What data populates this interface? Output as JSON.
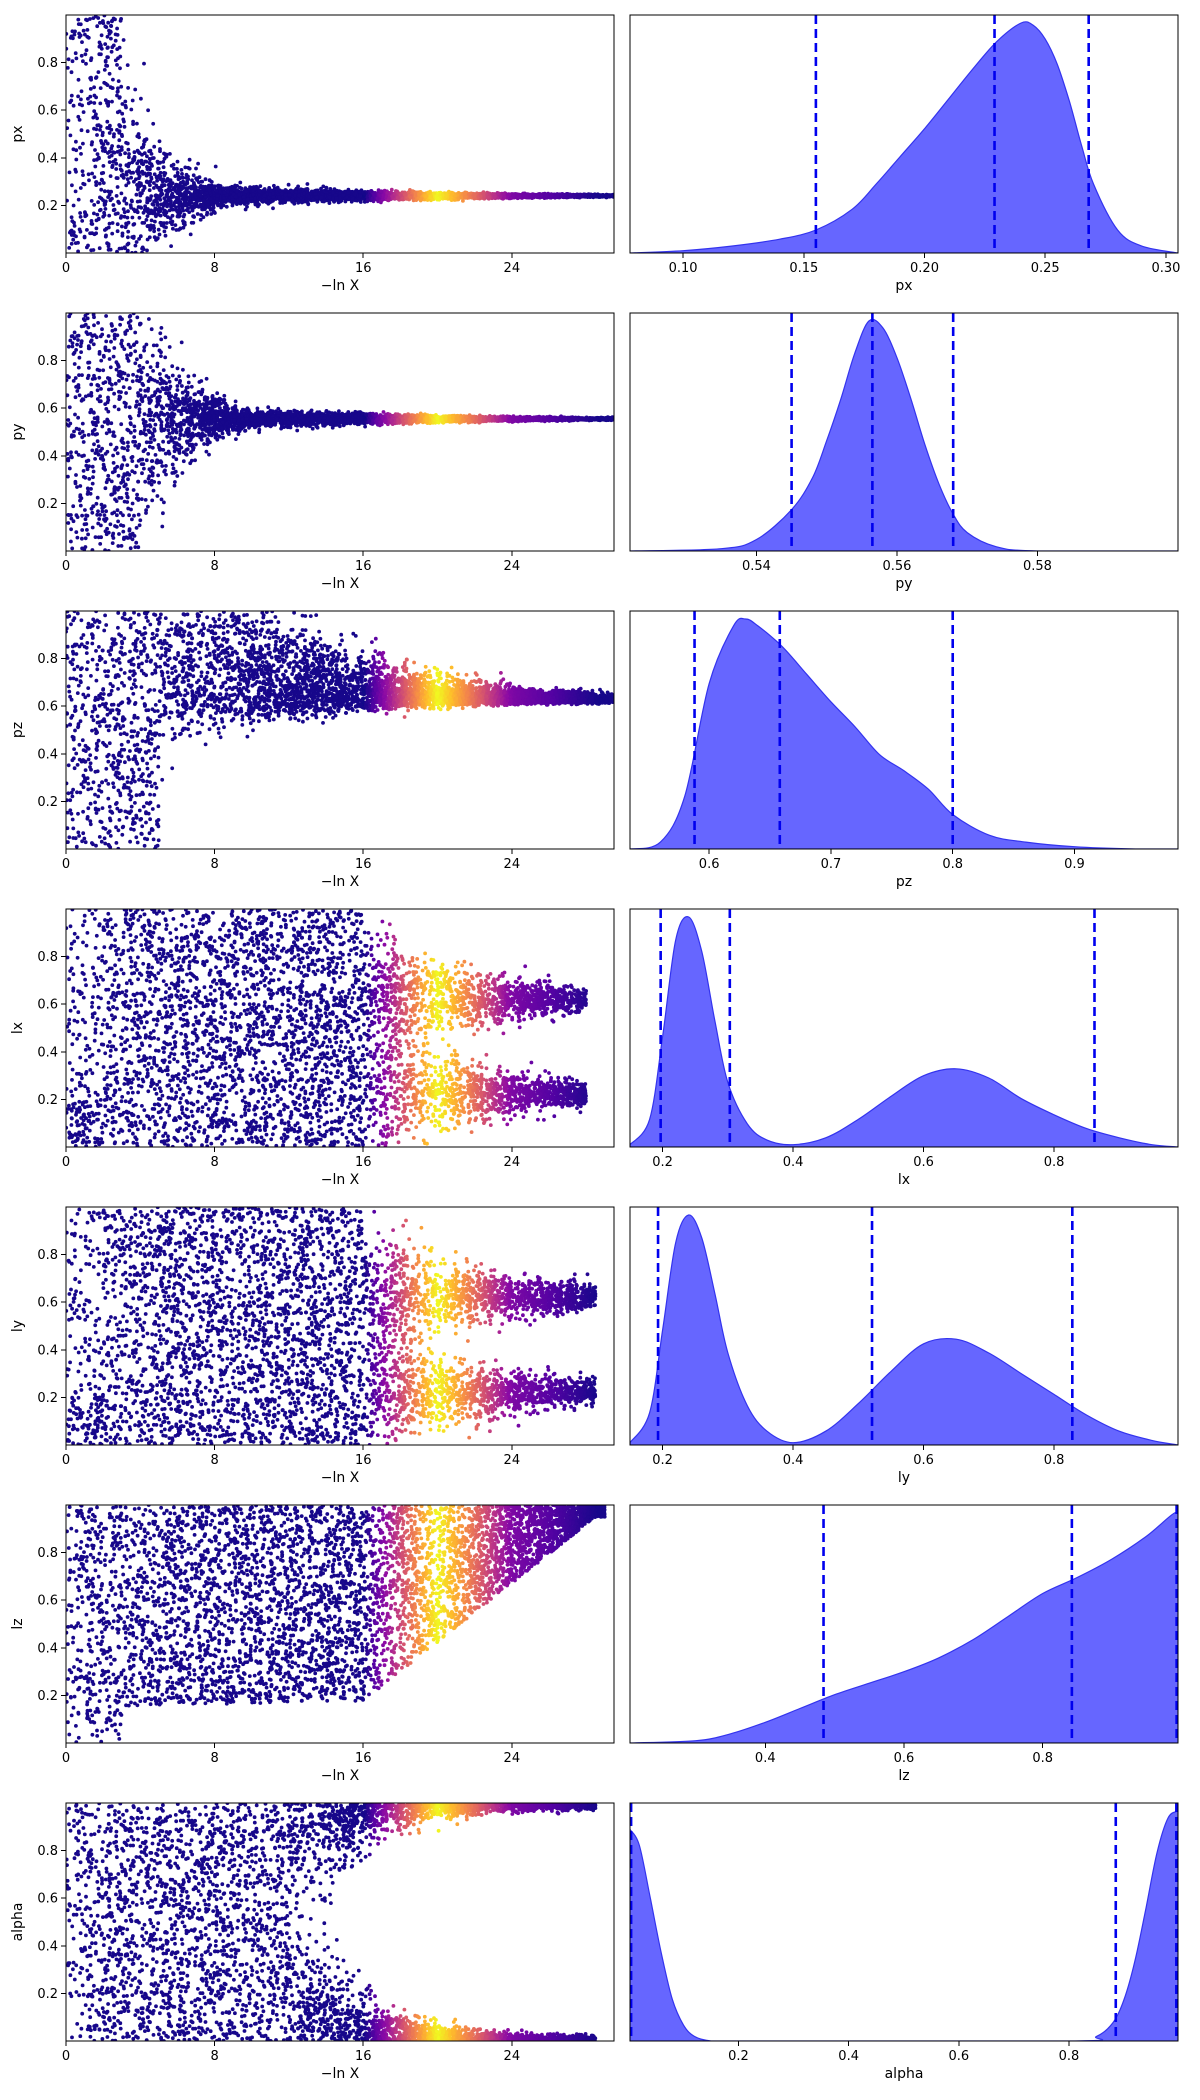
{
  "chart_data": [
    {
      "type": "scatter",
      "panel": "trace",
      "param": "px",
      "ylabel": "px",
      "xlabel": "−ln X",
      "xlim": [
        0,
        29.5
      ],
      "ylim": [
        0,
        1
      ],
      "xticks": [
        0,
        8,
        16,
        24
      ],
      "yticks": [
        0.2,
        0.4,
        0.6,
        0.8
      ],
      "colormap": "plasma",
      "converge_center": 0.24,
      "collapse_start": 3,
      "converge_end_x": 29.5
    },
    {
      "type": "area",
      "panel": "posterior",
      "param": "px",
      "xlabel": "px",
      "xlim": [
        0.078,
        0.305
      ],
      "xticks": [
        0.1,
        0.15,
        0.2,
        0.25,
        0.3
      ],
      "quantile_lines": [
        0.155,
        0.229,
        0.268
      ],
      "density": {
        "x": [
          0.078,
          0.1,
          0.12,
          0.14,
          0.155,
          0.17,
          0.18,
          0.19,
          0.2,
          0.21,
          0.22,
          0.23,
          0.24,
          0.245,
          0.25,
          0.255,
          0.26,
          0.265,
          0.27,
          0.28,
          0.29,
          0.305
        ],
        "y": [
          0.0,
          0.01,
          0.03,
          0.06,
          0.1,
          0.19,
          0.3,
          0.42,
          0.54,
          0.67,
          0.8,
          0.92,
          1.0,
          0.99,
          0.93,
          0.82,
          0.66,
          0.47,
          0.3,
          0.1,
          0.03,
          0.0
        ]
      }
    },
    {
      "type": "scatter",
      "panel": "trace",
      "param": "py",
      "ylabel": "py",
      "xlabel": "−ln X",
      "xlim": [
        0,
        29.5
      ],
      "ylim": [
        0,
        1
      ],
      "xticks": [
        0,
        8,
        16,
        24
      ],
      "yticks": [
        0.2,
        0.4,
        0.6,
        0.8
      ],
      "colormap": "plasma",
      "converge_center": 0.555,
      "collapse_start": 4,
      "converge_end_x": 29.5
    },
    {
      "type": "area",
      "panel": "posterior",
      "param": "py",
      "xlabel": "py",
      "xlim": [
        0.522,
        0.6
      ],
      "xticks": [
        0.54,
        0.56,
        0.58
      ],
      "quantile_lines": [
        0.545,
        0.5565,
        0.568
      ],
      "density": {
        "x": [
          0.522,
          0.535,
          0.54,
          0.545,
          0.548,
          0.55,
          0.552,
          0.554,
          0.556,
          0.558,
          0.56,
          0.562,
          0.564,
          0.566,
          0.568,
          0.57,
          0.574,
          0.58,
          0.6
        ],
        "y": [
          0.0,
          0.01,
          0.05,
          0.18,
          0.32,
          0.48,
          0.66,
          0.86,
          1.0,
          0.97,
          0.84,
          0.66,
          0.46,
          0.29,
          0.16,
          0.08,
          0.02,
          0.0,
          0.0
        ]
      }
    },
    {
      "type": "scatter",
      "panel": "trace",
      "param": "pz",
      "ylabel": "pz",
      "xlabel": "−ln X",
      "xlim": [
        0,
        29.5
      ],
      "ylim": [
        0,
        1
      ],
      "xticks": [
        0,
        8,
        16,
        24
      ],
      "yticks": [
        0.2,
        0.4,
        0.6,
        0.8
      ],
      "colormap": "plasma",
      "converge_center": 0.62,
      "collapse_start": 5,
      "converge_end_x": 29.5
    },
    {
      "type": "area",
      "panel": "posterior",
      "param": "pz",
      "xlabel": "pz",
      "xlim": [
        0.535,
        0.985
      ],
      "xticks": [
        0.6,
        0.7,
        0.8,
        0.9
      ],
      "quantile_lines": [
        0.588,
        0.658,
        0.8
      ],
      "density": {
        "x": [
          0.535,
          0.56,
          0.58,
          0.6,
          0.62,
          0.63,
          0.64,
          0.66,
          0.68,
          0.7,
          0.72,
          0.74,
          0.76,
          0.78,
          0.8,
          0.83,
          0.86,
          0.9,
          0.95,
          0.985
        ],
        "y": [
          0.0,
          0.03,
          0.23,
          0.72,
          0.97,
          1.0,
          0.97,
          0.88,
          0.76,
          0.64,
          0.53,
          0.41,
          0.34,
          0.26,
          0.15,
          0.06,
          0.03,
          0.01,
          0.0,
          0.0
        ]
      }
    },
    {
      "type": "scatter",
      "panel": "trace",
      "param": "lx",
      "ylabel": "lx",
      "xlabel": "−ln X",
      "xlim": [
        0,
        29.5
      ],
      "ylim": [
        0,
        1
      ],
      "xticks": [
        0,
        8,
        16,
        24
      ],
      "yticks": [
        0.2,
        0.4,
        0.6,
        0.8
      ],
      "colormap": "plasma",
      "modes": [
        0.22,
        0.62
      ],
      "collapse_start": 16,
      "converge_end_x": 28
    },
    {
      "type": "area",
      "panel": "posterior",
      "param": "lx",
      "xlabel": "lx",
      "xlim": [
        0.15,
        0.99
      ],
      "xticks": [
        0.2,
        0.4,
        0.6,
        0.8
      ],
      "quantile_lines": [
        0.197,
        0.303,
        0.862
      ],
      "density": {
        "x": [
          0.15,
          0.18,
          0.2,
          0.22,
          0.24,
          0.26,
          0.28,
          0.3,
          0.33,
          0.36,
          0.4,
          0.45,
          0.5,
          0.55,
          0.6,
          0.65,
          0.7,
          0.75,
          0.8,
          0.85,
          0.9,
          0.95,
          0.99
        ],
        "y": [
          0.01,
          0.12,
          0.48,
          0.9,
          1.0,
          0.85,
          0.55,
          0.28,
          0.1,
          0.03,
          0.01,
          0.04,
          0.12,
          0.22,
          0.31,
          0.34,
          0.3,
          0.21,
          0.14,
          0.08,
          0.04,
          0.01,
          0.0
        ]
      }
    },
    {
      "type": "scatter",
      "panel": "trace",
      "param": "ly",
      "ylabel": "ly",
      "xlabel": "−ln X",
      "xlim": [
        0,
        29.5
      ],
      "ylim": [
        0,
        1
      ],
      "xticks": [
        0,
        8,
        16,
        24
      ],
      "yticks": [
        0.2,
        0.4,
        0.6,
        0.8
      ],
      "colormap": "plasma",
      "modes": [
        0.22,
        0.62
      ],
      "collapse_start": 16,
      "converge_end_x": 28.5
    },
    {
      "type": "area",
      "panel": "posterior",
      "param": "ly",
      "xlabel": "ly",
      "xlim": [
        0.15,
        0.99
      ],
      "xticks": [
        0.2,
        0.4,
        0.6,
        0.8
      ],
      "quantile_lines": [
        0.193,
        0.521,
        0.828
      ],
      "density": {
        "x": [
          0.15,
          0.18,
          0.2,
          0.22,
          0.24,
          0.26,
          0.28,
          0.3,
          0.33,
          0.36,
          0.4,
          0.45,
          0.5,
          0.55,
          0.6,
          0.65,
          0.7,
          0.75,
          0.8,
          0.85,
          0.9,
          0.95,
          0.99
        ],
        "y": [
          0.01,
          0.14,
          0.5,
          0.88,
          1.0,
          0.9,
          0.66,
          0.4,
          0.17,
          0.06,
          0.01,
          0.06,
          0.18,
          0.32,
          0.44,
          0.46,
          0.4,
          0.31,
          0.22,
          0.13,
          0.06,
          0.02,
          0.0
        ]
      }
    },
    {
      "type": "scatter",
      "panel": "trace",
      "param": "lz",
      "ylabel": "lz",
      "xlabel": "−ln X",
      "xlim": [
        0,
        29.5
      ],
      "ylim": [
        0,
        1
      ],
      "xticks": [
        0,
        8,
        16,
        24
      ],
      "yticks": [
        0.2,
        0.4,
        0.6,
        0.8
      ],
      "colormap": "plasma",
      "upper_wedge": true,
      "collapse_start": 16,
      "converge_end_x": 29
    },
    {
      "type": "area",
      "panel": "posterior",
      "param": "lz",
      "xlabel": "lz",
      "xlim": [
        0.205,
        0.995
      ],
      "xticks": [
        0.4,
        0.6,
        0.8
      ],
      "quantile_lines": [
        0.484,
        0.842,
        0.993
      ],
      "density": {
        "x": [
          0.205,
          0.3,
          0.35,
          0.4,
          0.45,
          0.5,
          0.55,
          0.6,
          0.65,
          0.7,
          0.75,
          0.8,
          0.85,
          0.9,
          0.95,
          0.99,
          0.995
        ],
        "y": [
          0.0,
          0.01,
          0.04,
          0.09,
          0.15,
          0.21,
          0.26,
          0.31,
          0.37,
          0.45,
          0.55,
          0.65,
          0.72,
          0.8,
          0.9,
          1.0,
          0.97
        ]
      }
    },
    {
      "type": "scatter",
      "panel": "trace",
      "param": "alpha",
      "ylabel": "alpha",
      "xlabel": "−ln X",
      "xlim": [
        0,
        29.5
      ],
      "ylim": [
        0,
        1
      ],
      "xticks": [
        0,
        8,
        16,
        24
      ],
      "yticks": [
        0.2,
        0.4,
        0.6,
        0.8
      ],
      "colormap": "plasma",
      "edge_modes": true,
      "collapse_start": 12,
      "converge_end_x": 28.5
    },
    {
      "type": "area",
      "panel": "posterior",
      "param": "alpha",
      "xlabel": "alpha",
      "xlim": [
        0.003,
        0.998
      ],
      "xticks": [
        0.2,
        0.4,
        0.6,
        0.8
      ],
      "quantile_lines": [
        0.005,
        0.885,
        0.995
      ],
      "density": {
        "x": [
          0.003,
          0.02,
          0.04,
          0.06,
          0.08,
          0.1,
          0.12,
          0.15,
          0.2,
          0.8,
          0.85,
          0.88,
          0.9,
          0.92,
          0.94,
          0.96,
          0.98,
          0.998
        ],
        "y": [
          0.92,
          0.85,
          0.62,
          0.38,
          0.18,
          0.07,
          0.02,
          0.0,
          0.0,
          0.0,
          0.02,
          0.08,
          0.18,
          0.35,
          0.58,
          0.82,
          0.97,
          1.0
        ]
      }
    }
  ]
}
